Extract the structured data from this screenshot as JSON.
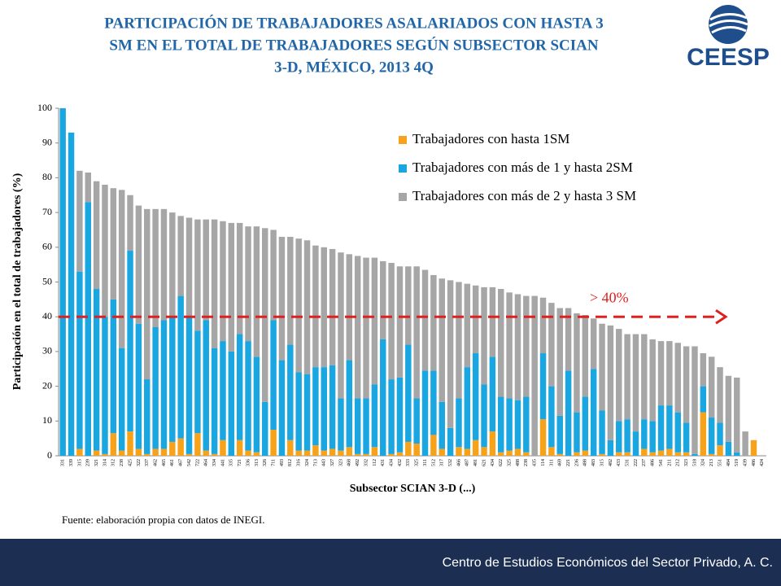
{
  "title": [
    "PARTICIPACIÓN DE TRABAJADORES ASALARIADOS CON HASTA 3",
    "SM EN EL TOTAL DE TRABAJADORES SEGÚN SUBSECTOR SCIAN",
    "3-D, MÉXICO, 2013 4Q"
  ],
  "logo": "CEESP",
  "footer": "Centro de Estudios Económicos del Sector Privado, A. C.",
  "chart_data": {
    "type": "bar",
    "stacked": true,
    "source": "Fuente: elaboración propia con datos de INEGI.",
    "x_label": "Subsector SCIAN 3-D (...)",
    "y_label": "Participación en el total de trabajadores (%)",
    "ylim": [
      0,
      100
    ],
    "yticks": [
      0,
      10,
      20,
      30,
      40,
      50,
      60,
      70,
      80,
      90,
      100
    ],
    "grid": false,
    "legend": "top-right",
    "threshold": {
      "value": 40,
      "label": ">  40%",
      "color": "#e02020"
    },
    "categories": [
      "331",
      "339",
      "315",
      "239",
      "321",
      "314",
      "312",
      "238",
      "425",
      "322",
      "337",
      "462",
      "465",
      "461",
      "467",
      "542",
      "722",
      "464",
      "334",
      "441",
      "335",
      "721",
      "336",
      "313",
      "326",
      "711",
      "493",
      "812",
      "316",
      "324",
      "713",
      "443",
      "327",
      "323",
      "468",
      "492",
      "332",
      "112",
      "431",
      "434",
      "432",
      "333",
      "325",
      "311",
      "512",
      "317",
      "532",
      "466",
      "487",
      "481",
      "621",
      "434",
      "622",
      "325",
      "488",
      "238",
      "435",
      "114",
      "311",
      "469",
      "221",
      "236",
      "488",
      "483",
      "315",
      "482",
      "433",
      "531",
      "222",
      "237",
      "486",
      "541",
      "211",
      "212",
      "323",
      "518",
      "324",
      "213",
      "551",
      "484",
      "519",
      "439",
      "486",
      "424"
    ],
    "series": [
      {
        "name": "Trabajadores con hasta 1SM",
        "color": "#f7a21b",
        "values": [
          0,
          0,
          2,
          0,
          1.5,
          0.5,
          6.5,
          1.5,
          7,
          2,
          0.5,
          2,
          2,
          4,
          5,
          0.5,
          6.5,
          1.5,
          0.5,
          4.5,
          0,
          4.5,
          1.5,
          1,
          0,
          7.5,
          0,
          4.5,
          1.5,
          1.5,
          3,
          1.5,
          2,
          1.5,
          2.5,
          0.5,
          0.5,
          2.5,
          0,
          0.5,
          1,
          4,
          3.5,
          0,
          6,
          2,
          0,
          2.5,
          2,
          4.5,
          2.5,
          7,
          1,
          1.5,
          2,
          1,
          0,
          10.5,
          2.5,
          0.5,
          0,
          1,
          1.5,
          0,
          0.5,
          0,
          1,
          1,
          0,
          2,
          1,
          1.5,
          2,
          1,
          1,
          0,
          12.5,
          0.5,
          3,
          0,
          0,
          0,
          4.5,
          0
        ]
      },
      {
        "name": "Trabajadores con más de 1 y hasta 2SM",
        "color": "#1aa6e0",
        "values": [
          100,
          93,
          51,
          73,
          46.5,
          39.5,
          38.5,
          29.5,
          52,
          36,
          21.5,
          35,
          37,
          36,
          41,
          39.5,
          29.5,
          37.5,
          30.5,
          28.5,
          30,
          30.5,
          31.5,
          27.5,
          15.5,
          31.5,
          27.5,
          27.5,
          22.5,
          22,
          22.5,
          24,
          24,
          15,
          25,
          16,
          16,
          18,
          33.5,
          21.5,
          21.5,
          28,
          13,
          24.5,
          18.5,
          13.5,
          8,
          14,
          23.5,
          25,
          18,
          21.5,
          16,
          15,
          14,
          16,
          0,
          19,
          17.5,
          11,
          24.5,
          11.5,
          15.5,
          25,
          12.5,
          4.5,
          9,
          9.5,
          7,
          8.5,
          9,
          13,
          12.5,
          11.5,
          8.5,
          0.5,
          7.5,
          10.5,
          6.5,
          4,
          1,
          0,
          0,
          0
        ]
      },
      {
        "name": "Trabajadores con más de 2 y hasta 3 SM",
        "color": "#a6a6a6",
        "values": [
          0,
          0,
          29,
          8.5,
          31,
          38,
          32,
          45.5,
          16,
          34,
          49,
          34,
          32,
          30,
          23,
          28.5,
          32,
          29,
          37,
          34.5,
          37,
          32,
          33,
          37.5,
          50,
          26,
          35.5,
          31,
          38.5,
          38.5,
          35,
          34.5,
          33.5,
          42,
          30.5,
          41,
          40.5,
          36.5,
          22.5,
          33.5,
          32,
          22.5,
          38,
          29,
          27.5,
          35.5,
          42.5,
          33.5,
          24,
          19.5,
          28,
          20,
          31,
          30.5,
          30.5,
          29,
          46,
          16,
          24,
          31,
          18,
          28.5,
          23.5,
          14.5,
          25,
          33,
          26.5,
          24.5,
          28,
          24.5,
          23.5,
          18.5,
          18.5,
          20,
          22,
          31,
          9.5,
          17.5,
          16,
          19,
          21.5,
          7,
          0,
          0
        ]
      }
    ]
  }
}
